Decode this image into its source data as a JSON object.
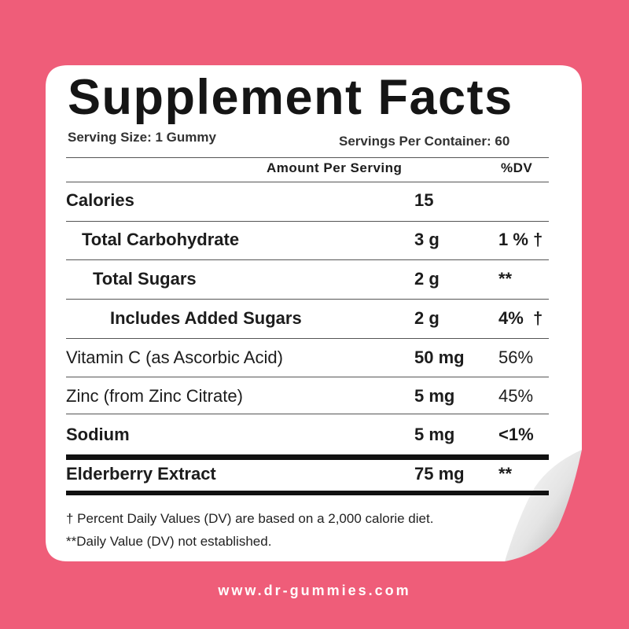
{
  "title": "Supplement Facts",
  "serving_size": "Serving Size: 1 Gummy",
  "servings_per_container": "Servings Per Container: 60",
  "header": {
    "amount": "Amount Per Serving",
    "dv": "%DV"
  },
  "rows": [
    {
      "name": "Calories",
      "amount": "15"
    },
    {
      "name": "Total Carbohydrate",
      "amount": "3 g",
      "dv": "1 % †"
    },
    {
      "name": "Total Sugars",
      "amount": "2 g",
      "dv": "**"
    },
    {
      "name": "Includes Added Sugars",
      "amount": "2 g",
      "dv": "4%  †"
    },
    {
      "name": "Vitamin C (as Ascorbic Acid)",
      "amount": "50 mg",
      "dv": "56%"
    },
    {
      "name": "Zinc (from Zinc Citrate)",
      "amount": "5 mg",
      "dv": "45%"
    },
    {
      "name": "Sodium",
      "amount": "5 mg",
      "dv": "<1%"
    },
    {
      "name": "Elderberry Extract",
      "amount": "75 mg",
      "dv": "**"
    }
  ],
  "footnotes": [
    "† Percent Daily Values (DV) are based on a 2,000 calorie diet.",
    "**Daily Value (DV) not established."
  ],
  "website": "www.dr-gummies.com"
}
